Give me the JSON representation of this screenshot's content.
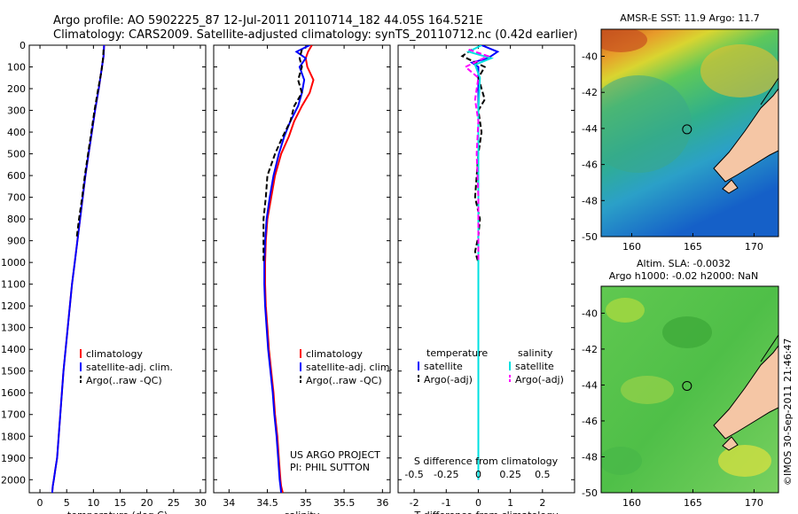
{
  "figure": {
    "title_line1": "Argo profile: AO 5902225_87 12-Jul-2011 20110714_182 44.05S 164.521E",
    "title_line2": "Climatology: CARS2009. Satellite-adjusted climatology: synTS_20110712.nc (0.42d earlier)",
    "credit": "US ARGO PROJECT",
    "pi": "PI: PHIL SUTTON",
    "watermark": "©IMOS 30-Sep-2011 21:46:47"
  },
  "colors": {
    "climatology": "#ff0000",
    "satellite": "#0000ff",
    "argo": "#000000",
    "t_satellite": "#0000ff",
    "s_satellite": "#00e0e0",
    "s_argo": "#ff00ff",
    "land": "#f5c6a5"
  },
  "chart_data": [
    {
      "type": "line",
      "xlabel": "temperature (deg C)",
      "ylabel": "",
      "xlim": [
        -2,
        31
      ],
      "ylim": [
        2060,
        0
      ],
      "x_ticks": [
        0,
        5,
        10,
        15,
        20,
        25,
        30
      ],
      "y_ticks": [
        0,
        100,
        200,
        300,
        400,
        500,
        600,
        700,
        800,
        900,
        1000,
        1100,
        1200,
        1300,
        1400,
        1500,
        1600,
        1700,
        1800,
        1900,
        2000
      ],
      "legend": [
        "climatology",
        "satellite-adj. clim.",
        "Argo(..raw -QC)"
      ],
      "legend_position": "lower-right",
      "series": [
        {
          "name": "climatology",
          "style": "solid",
          "color_key": "climatology",
          "x": [
            12.0,
            11.9,
            11.6,
            11.0,
            10.3,
            9.7,
            9.1,
            8.5,
            8.0,
            7.5,
            7.0,
            6.5,
            6.0,
            5.6,
            5.2,
            4.8,
            4.4,
            4.1,
            3.8,
            3.5,
            3.2,
            2.9,
            2.6,
            2.4,
            2.3
          ],
          "y": [
            0,
            50,
            100,
            200,
            300,
            400,
            500,
            600,
            700,
            800,
            900,
            1000,
            1100,
            1200,
            1300,
            1400,
            1500,
            1600,
            1700,
            1800,
            1900,
            1950,
            2000,
            2030,
            2060
          ]
        },
        {
          "name": "satellite-adj. clim.",
          "style": "solid",
          "color_key": "satellite",
          "x": [
            12.0,
            11.9,
            11.6,
            11.0,
            10.3,
            9.7,
            9.1,
            8.5,
            8.0,
            7.5,
            7.0,
            6.5,
            6.0,
            5.6,
            5.2,
            4.8,
            4.4,
            4.1,
            3.8,
            3.5,
            3.2,
            2.9,
            2.6,
            2.4,
            2.3
          ],
          "y": [
            0,
            50,
            100,
            200,
            300,
            400,
            500,
            600,
            700,
            800,
            900,
            1000,
            1100,
            1200,
            1300,
            1400,
            1500,
            1600,
            1700,
            1800,
            1900,
            1950,
            2000,
            2030,
            2060
          ]
        },
        {
          "name": "Argo(..raw -QC)",
          "style": "dashed",
          "color_key": "argo",
          "x": [
            11.9,
            11.8,
            11.5,
            10.9,
            10.2,
            9.6,
            9.0,
            8.4,
            7.9,
            7.3,
            6.9
          ],
          "y": [
            20,
            60,
            120,
            200,
            300,
            400,
            500,
            600,
            700,
            800,
            880
          ]
        }
      ]
    },
    {
      "type": "line",
      "xlabel": "salinity",
      "ylabel": "",
      "xlim": [
        33.8,
        36.1
      ],
      "ylim": [
        2060,
        0
      ],
      "x_ticks": [
        34,
        34.5,
        35,
        35.5,
        36
      ],
      "legend": [
        "climatology",
        "satellite-adj. clim.",
        "Argo(..raw -QC)"
      ],
      "legend_position": "lower-right",
      "series": [
        {
          "name": "climatology",
          "style": "solid",
          "color_key": "climatology",
          "x": [
            35.08,
            35.03,
            35.0,
            35.02,
            35.1,
            35.05,
            34.95,
            34.85,
            34.78,
            34.68,
            34.6,
            34.55,
            34.5,
            34.48,
            34.47,
            34.47,
            34.48,
            34.5,
            34.52,
            34.55,
            34.58,
            34.6,
            34.63,
            34.65,
            34.67,
            34.68,
            34.7
          ],
          "y": [
            0,
            30,
            60,
            100,
            160,
            220,
            280,
            350,
            420,
            500,
            600,
            700,
            800,
            900,
            1000,
            1100,
            1200,
            1300,
            1400,
            1500,
            1600,
            1700,
            1800,
            1900,
            2000,
            2030,
            2060
          ]
        },
        {
          "name": "satellite-adj. clim.",
          "style": "solid",
          "color_key": "satellite",
          "x": [
            35.05,
            34.88,
            35.0,
            34.92,
            34.98,
            34.95,
            34.9,
            34.8,
            34.72,
            34.65,
            34.58,
            34.53,
            34.49,
            34.47,
            34.46,
            34.46,
            34.47,
            34.49,
            34.51,
            34.54,
            34.57,
            34.59,
            34.62,
            34.64,
            34.66,
            34.67,
            34.68
          ],
          "y": [
            0,
            30,
            60,
            100,
            160,
            220,
            280,
            350,
            420,
            500,
            600,
            700,
            800,
            900,
            1000,
            1100,
            1200,
            1300,
            1400,
            1500,
            1600,
            1700,
            1800,
            1900,
            2000,
            2030,
            2060
          ]
        },
        {
          "name": "Argo(..raw -QC)",
          "style": "dashed",
          "color_key": "argo",
          "x": [
            34.95,
            34.92,
            34.95,
            34.9,
            34.95,
            34.85,
            34.8,
            34.7,
            34.6,
            34.5,
            34.48,
            34.45,
            34.45,
            34.45
          ],
          "y": [
            20,
            60,
            100,
            160,
            220,
            280,
            350,
            420,
            500,
            600,
            700,
            800,
            900,
            1000
          ]
        }
      ]
    },
    {
      "type": "line",
      "xlabel": "T difference from climatology",
      "xlabel_top": "S difference from climatology",
      "ylabel": "",
      "xlim": [
        -2.5,
        3.0
      ],
      "ylim": [
        2060,
        0
      ],
      "x_ticks": [
        -2,
        -1,
        0,
        1,
        2
      ],
      "s_ticks": [
        -0.5,
        -0.25,
        0,
        0.25,
        0.5
      ],
      "s_tick_labels": [
        "-0.5",
        "-0.25",
        "0",
        "0.25",
        "0.5"
      ],
      "legend": {
        "temperature_header": "temperature",
        "salinity_header": "salinity",
        "t_satellite": "satellite",
        "t_argo": "Argo(-adj)",
        "s_satellite": "satellite",
        "s_argo": "Argo(-adj)"
      },
      "legend_position": "lower-center",
      "series": [
        {
          "name": "temperature satellite",
          "style": "solid",
          "color_key": "t_satellite",
          "x": [
            0.1,
            0.6,
            0.3,
            -0.2,
            0.0,
            0.0,
            0.0,
            0.0,
            0.0,
            0.0,
            0.0
          ],
          "y": [
            0,
            30,
            60,
            80,
            100,
            200,
            400,
            800,
            1200,
            1600,
            2000
          ]
        },
        {
          "name": "temperature Argo(-adj)",
          "style": "dashed",
          "color_key": "argo",
          "x": [
            -0.2,
            -0.5,
            0.2,
            0.0,
            0.2,
            0.0,
            0.1,
            0.0,
            -0.1,
            0.05,
            0.0,
            -0.1,
            0.0
          ],
          "y": [
            20,
            50,
            100,
            150,
            250,
            300,
            400,
            500,
            700,
            800,
            880,
            950,
            1000
          ]
        },
        {
          "name": "salinity satellite",
          "style": "solid",
          "color_key": "s_satellite",
          "x": [
            0.1,
            -0.3,
            0.4,
            -0.1,
            0.05,
            0.0,
            0.0,
            0.0,
            0.0,
            0.0,
            0.0
          ],
          "y": [
            0,
            30,
            60,
            90,
            150,
            300,
            500,
            900,
            1300,
            1700,
            2000
          ]
        },
        {
          "name": "salinity Argo(-adj)",
          "style": "dashed",
          "color_key": "s_argo",
          "x": [
            -0.3,
            0.3,
            -0.4,
            0.0,
            -0.1,
            0.0,
            -0.05,
            0.0,
            0.0,
            0.0
          ],
          "y": [
            20,
            50,
            100,
            150,
            250,
            350,
            500,
            700,
            900,
            1000
          ]
        }
      ]
    },
    {
      "type": "heatmap",
      "title": "AMSR-E SST: 11.9 Argo: 11.7",
      "xlim": [
        157.5,
        172
      ],
      "ylim": [
        -50,
        -38.5
      ],
      "x_ticks": [
        160,
        165,
        170
      ],
      "y_ticks": [
        -40,
        -42,
        -44,
        -46,
        -48,
        -50
      ],
      "marker": {
        "lon": 164.52,
        "lat": -44.05
      }
    },
    {
      "type": "heatmap",
      "title_line1": "Altim. SLA: -0.0032",
      "title_line2": "Argo h1000: -0.02 h2000: NaN",
      "xlim": [
        157.5,
        172
      ],
      "ylim": [
        -50,
        -38.5
      ],
      "x_ticks": [
        160,
        165,
        170
      ],
      "y_ticks": [
        -40,
        -42,
        -44,
        -46,
        -48,
        -50
      ],
      "marker": {
        "lon": 164.52,
        "lat": -44.05
      }
    }
  ]
}
